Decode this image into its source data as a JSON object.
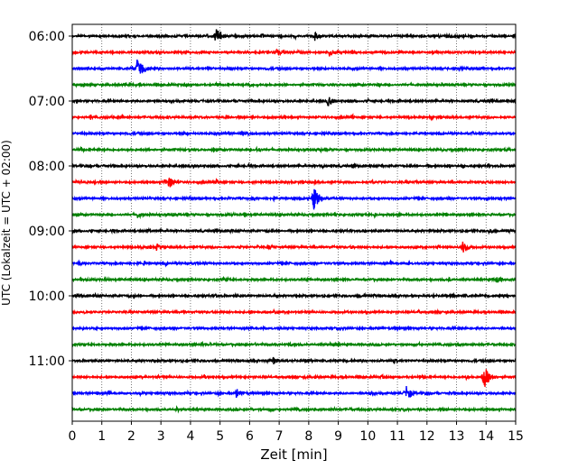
{
  "chart_data": {
    "type": "line",
    "title": "",
    "xlabel": "Zeit  [min]",
    "ylabel": "UTC (Lokalzeit = UTC + 02:00)",
    "xlim": [
      0,
      15
    ],
    "x_ticks": [
      "0",
      "1",
      "2",
      "3",
      "4",
      "5",
      "6",
      "7",
      "8",
      "9",
      "10",
      "11",
      "12",
      "13",
      "14",
      "15"
    ],
    "y_ticks": [
      "06:00",
      "07:00",
      "08:00",
      "09:00",
      "10:00",
      "11:00"
    ],
    "y_tick_rows": [
      0,
      4,
      8,
      12,
      16,
      20
    ],
    "grid": "vertical dotted at each minute",
    "trace_colors": [
      "#000000",
      "#ff0000",
      "#0000ff",
      "#008000"
    ],
    "traces_start": "06:00",
    "trace_interval_minutes": 15,
    "trace_count": 24,
    "events": [
      {
        "trace": 0,
        "minute": 4.85,
        "amplitude": 1.0
      },
      {
        "trace": 0,
        "minute": 8.2,
        "amplitude": 0.55
      },
      {
        "trace": 0,
        "minute": 12.65,
        "amplitude": 0.3
      },
      {
        "trace": 1,
        "minute": 6.9,
        "amplitude": 0.45
      },
      {
        "trace": 1,
        "minute": 8.7,
        "amplitude": 0.45
      },
      {
        "trace": 2,
        "minute": 2.2,
        "amplitude": 1.3
      },
      {
        "trace": 2,
        "minute": 13.0,
        "amplitude": 0.3
      },
      {
        "trace": 3,
        "minute": 4.85,
        "amplitude": 0.25
      },
      {
        "trace": 4,
        "minute": 8.65,
        "amplitude": 0.6
      },
      {
        "trace": 6,
        "minute": 5.85,
        "amplitude": 0.3
      },
      {
        "trace": 7,
        "minute": 6.2,
        "amplitude": 0.25
      },
      {
        "trace": 8,
        "minute": 4.1,
        "amplitude": 0.25
      },
      {
        "trace": 9,
        "minute": 3.25,
        "amplitude": 0.7
      },
      {
        "trace": 9,
        "minute": 4.85,
        "amplitude": 0.35
      },
      {
        "trace": 10,
        "minute": 8.15,
        "amplitude": 1.3
      },
      {
        "trace": 11,
        "minute": 2.2,
        "amplitude": 0.4
      },
      {
        "trace": 12,
        "minute": 14.1,
        "amplitude": 0.3
      },
      {
        "trace": 13,
        "minute": 2.85,
        "amplitude": 0.4
      },
      {
        "trace": 13,
        "minute": 6.65,
        "amplitude": 0.3
      },
      {
        "trace": 13,
        "minute": 13.2,
        "amplitude": 0.65
      },
      {
        "trace": 14,
        "minute": 0.2,
        "amplitude": 0.3
      },
      {
        "trace": 15,
        "minute": 14.35,
        "amplitude": 0.45
      },
      {
        "trace": 16,
        "minute": 12.85,
        "amplitude": 0.25
      },
      {
        "trace": 20,
        "minute": 6.8,
        "amplitude": 0.45
      },
      {
        "trace": 21,
        "minute": 13.9,
        "amplitude": 1.5
      },
      {
        "trace": 22,
        "minute": 5.55,
        "amplitude": 0.5
      },
      {
        "trace": 22,
        "minute": 11.3,
        "amplitude": 0.75
      },
      {
        "trace": 22,
        "minute": 11.95,
        "amplitude": 0.3
      }
    ]
  }
}
